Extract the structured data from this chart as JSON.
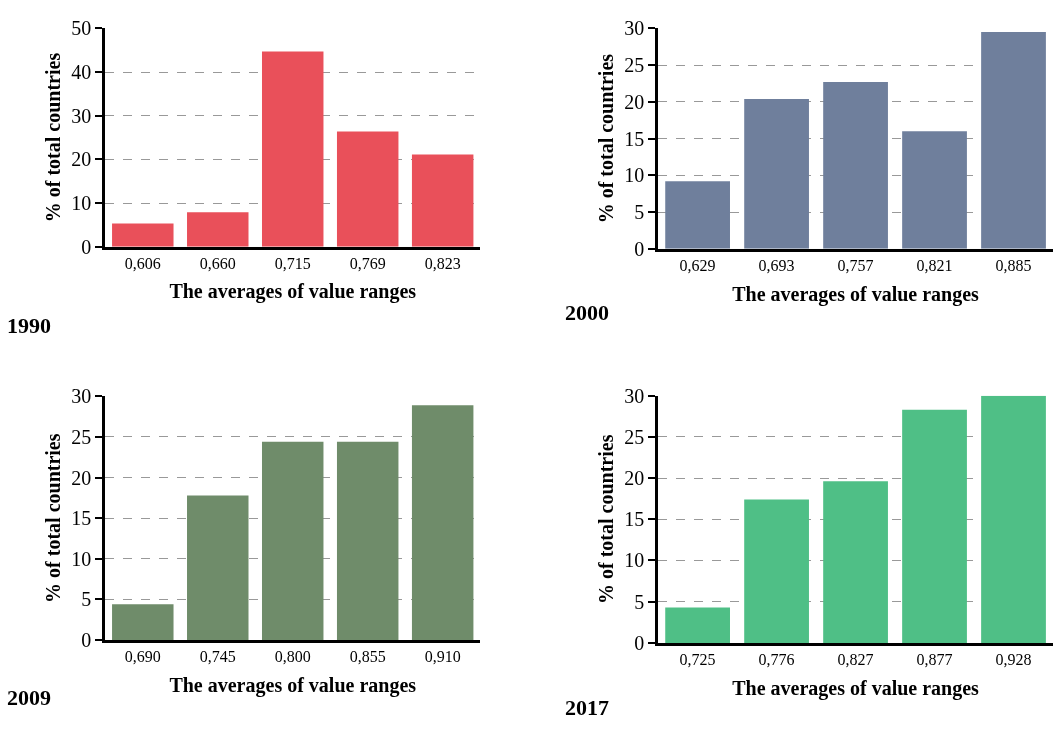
{
  "chart_data": [
    {
      "type": "bar",
      "title": "1990",
      "xlabel": "The averages of value ranges",
      "ylabel": "% of total countries",
      "categories": [
        "0,606",
        "0,660",
        "0,715",
        "0,769",
        "0,823"
      ],
      "values": [
        5.3,
        7.9,
        44.7,
        26.4,
        21.1
      ],
      "color": "#e9505a",
      "ylim": [
        0,
        50
      ],
      "yticks": [
        0,
        10,
        20,
        30,
        40,
        50
      ],
      "grid": "y"
    },
    {
      "type": "bar",
      "title": "2000",
      "xlabel": "The averages of value ranges",
      "ylabel": "% of total countries",
      "categories": [
        "0,629",
        "0,693",
        "0,757",
        "0,821",
        "0,885"
      ],
      "values": [
        9.2,
        20.4,
        22.7,
        16.0,
        29.5
      ],
      "color": "#6f7f9c",
      "ylim": [
        0,
        30
      ],
      "yticks": [
        0,
        5,
        10,
        15,
        20,
        25,
        30
      ],
      "grid": "y"
    },
    {
      "type": "bar",
      "title": "2009",
      "xlabel": "The averages of value ranges",
      "ylabel": "% of total countries",
      "categories": [
        "0,690",
        "0,745",
        "0,800",
        "0,855",
        "0,910"
      ],
      "values": [
        4.4,
        17.8,
        24.4,
        24.4,
        28.9
      ],
      "color": "#6f8c6a",
      "ylim": [
        0,
        30
      ],
      "yticks": [
        0,
        5,
        10,
        15,
        20,
        25,
        30
      ],
      "grid": "y"
    },
    {
      "type": "bar",
      "title": "2017",
      "xlabel": "The averages of value ranges",
      "ylabel": "% of total countries",
      "categories": [
        "0,725",
        "0,776",
        "0,827",
        "0,877",
        "0,928"
      ],
      "values": [
        4.3,
        17.4,
        19.6,
        28.3,
        30.0
      ],
      "color": "#4fbf86",
      "ylim": [
        0,
        30
      ],
      "yticks": [
        0,
        5,
        10,
        15,
        20,
        25,
        30
      ],
      "grid": "y"
    }
  ]
}
